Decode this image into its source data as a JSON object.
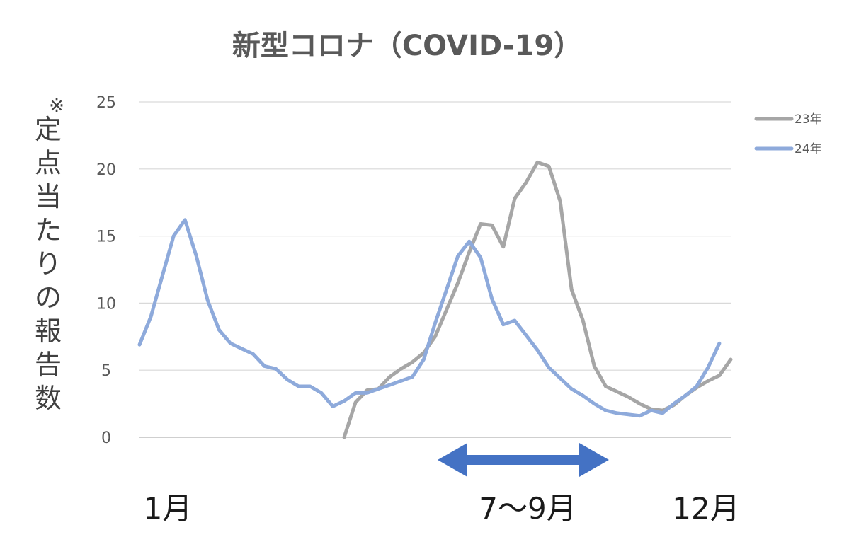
{
  "chart_data": {
    "type": "line",
    "title": "新型コロナ（COVID-19）",
    "ylabel": "※定点当たりの報告数",
    "ylim": [
      0,
      25
    ],
    "yticks": [
      "0",
      "5",
      "10",
      "15",
      "20",
      "25"
    ],
    "grid": true,
    "legend_position": "right",
    "month_labels": [
      "1月",
      "7〜9月",
      "12月"
    ],
    "highlight": {
      "label": "7〜9月",
      "from_week": 28,
      "to_week": 40,
      "color": "#4472c4"
    },
    "series": [
      {
        "name": "23年",
        "color": "#a6a6a6",
        "points": [
          [
            19,
            0
          ],
          [
            20,
            2.6
          ],
          [
            21,
            3.5
          ],
          [
            22,
            3.6
          ],
          [
            23,
            4.5
          ],
          [
            24,
            5.1
          ],
          [
            25,
            5.6
          ],
          [
            26,
            6.3
          ],
          [
            27,
            7.5
          ],
          [
            28,
            9.5
          ],
          [
            29,
            11.5
          ],
          [
            30,
            13.8
          ],
          [
            31,
            15.9
          ],
          [
            32,
            15.8
          ],
          [
            33,
            14.2
          ],
          [
            34,
            17.8
          ],
          [
            35,
            19.0
          ],
          [
            36,
            20.5
          ],
          [
            37,
            20.2
          ],
          [
            38,
            17.6
          ],
          [
            39,
            11.0
          ],
          [
            40,
            8.7
          ],
          [
            41,
            5.3
          ],
          [
            42,
            3.8
          ],
          [
            43,
            3.4
          ],
          [
            44,
            3.0
          ],
          [
            45,
            2.5
          ],
          [
            46,
            2.1
          ],
          [
            47,
            2.0
          ],
          [
            48,
            2.4
          ],
          [
            49,
            3.1
          ],
          [
            50,
            3.7
          ],
          [
            51,
            4.2
          ],
          [
            52,
            4.6
          ],
          [
            53,
            5.8
          ]
        ]
      },
      {
        "name": "24年",
        "color": "#8eaadb",
        "points": [
          [
            1,
            6.9
          ],
          [
            2,
            9.0
          ],
          [
            3,
            12.0
          ],
          [
            4,
            15.0
          ],
          [
            5,
            16.2
          ],
          [
            6,
            13.5
          ],
          [
            7,
            10.2
          ],
          [
            8,
            8.0
          ],
          [
            9,
            7.0
          ],
          [
            10,
            6.6
          ],
          [
            11,
            6.2
          ],
          [
            12,
            5.3
          ],
          [
            13,
            5.1
          ],
          [
            14,
            4.3
          ],
          [
            15,
            3.8
          ],
          [
            16,
            3.8
          ],
          [
            17,
            3.3
          ],
          [
            18,
            2.3
          ],
          [
            19,
            2.7
          ],
          [
            20,
            3.3
          ],
          [
            21,
            3.3
          ],
          [
            22,
            3.6
          ],
          [
            23,
            3.9
          ],
          [
            24,
            4.2
          ],
          [
            25,
            4.5
          ],
          [
            26,
            5.8
          ],
          [
            27,
            8.5
          ],
          [
            28,
            11.0
          ],
          [
            29,
            13.5
          ],
          [
            30,
            14.6
          ],
          [
            31,
            13.4
          ],
          [
            32,
            10.3
          ],
          [
            33,
            8.4
          ],
          [
            34,
            8.7
          ],
          [
            35,
            7.6
          ],
          [
            36,
            6.5
          ],
          [
            37,
            5.2
          ],
          [
            38,
            4.4
          ],
          [
            39,
            3.6
          ],
          [
            40,
            3.1
          ],
          [
            41,
            2.5
          ],
          [
            42,
            2.0
          ],
          [
            43,
            1.8
          ],
          [
            44,
            1.7
          ],
          [
            45,
            1.6
          ],
          [
            46,
            2.0
          ],
          [
            47,
            1.8
          ],
          [
            48,
            2.5
          ],
          [
            49,
            3.1
          ],
          [
            50,
            3.8
          ],
          [
            51,
            5.2
          ],
          [
            52,
            7.0
          ]
        ]
      }
    ]
  }
}
